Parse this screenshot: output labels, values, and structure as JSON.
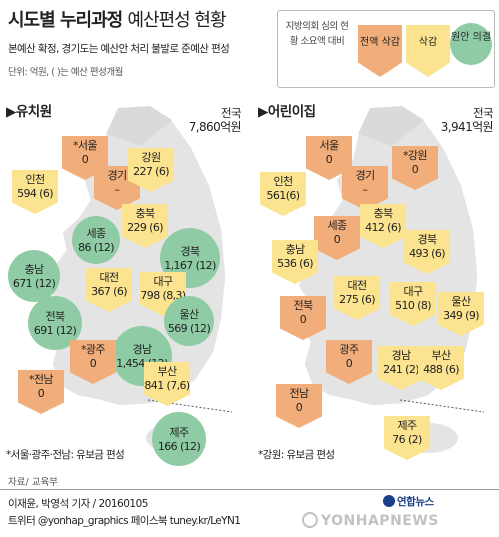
{
  "header": {
    "title_bold": "시도별 누리과정",
    "title_rest": "예산편성 현황",
    "subtitle": "본예산 확정, 경기도는 예산안 처리 불발로 준예산 편성",
    "unit": "단위: 억원, ( )는 예산 편성개월"
  },
  "legend": {
    "label": "지방의회 심의 현황 소요액 대비",
    "full": "전액 삭감",
    "cut": "삭감",
    "orig": "원안 의결"
  },
  "colors": {
    "full": "#f2ae7a",
    "cut": "#fbe38f",
    "orig": "#8fcca6",
    "land": "#e4e4e4"
  },
  "kindergarten": {
    "section_title": "▶유치원",
    "total_label": "전국",
    "total_value": "7,860억원",
    "footnote": "*서울·광주·전남: 유보금 편성",
    "regions": [
      {
        "name": "*서울",
        "value": "0",
        "status": "full"
      },
      {
        "name": "경기",
        "value": "–",
        "status": "full"
      },
      {
        "name": "강원",
        "value": "227 (6)",
        "status": "cut"
      },
      {
        "name": "인천",
        "value": "594 (6)",
        "status": "cut"
      },
      {
        "name": "세종",
        "value": "86 (12)",
        "status": "orig"
      },
      {
        "name": "충북",
        "value": "229 (6)",
        "status": "cut"
      },
      {
        "name": "경북",
        "value": "1,167 (12)",
        "status": "orig"
      },
      {
        "name": "충남",
        "value": "671 (12)",
        "status": "orig"
      },
      {
        "name": "대전",
        "value": "367 (6)",
        "status": "cut"
      },
      {
        "name": "대구",
        "value": "798 (8,3)",
        "status": "cut"
      },
      {
        "name": "전북",
        "value": "691 (12)",
        "status": "orig"
      },
      {
        "name": "울산",
        "value": "569 (12)",
        "status": "orig"
      },
      {
        "name": "경남",
        "value": "1,454 (12)",
        "status": "orig"
      },
      {
        "name": "*광주",
        "value": "0",
        "status": "full"
      },
      {
        "name": "부산",
        "value": "841 (7,6)",
        "status": "cut"
      },
      {
        "name": "*전남",
        "value": "0",
        "status": "full"
      },
      {
        "name": "제주",
        "value": "166 (12)",
        "status": "orig"
      }
    ]
  },
  "daycare": {
    "section_title": "▶어린이집",
    "total_label": "전국",
    "total_value": "3,941억원",
    "footnote": "*강원: 유보금 편성",
    "regions": [
      {
        "name": "서울",
        "value": "0",
        "status": "full"
      },
      {
        "name": "*강원",
        "value": "0",
        "status": "full"
      },
      {
        "name": "경기",
        "value": "–",
        "status": "full"
      },
      {
        "name": "인천",
        "value": "561(6)",
        "status": "cut"
      },
      {
        "name": "충북",
        "value": "412 (6)",
        "status": "cut"
      },
      {
        "name": "세종",
        "value": "0",
        "status": "full"
      },
      {
        "name": "경북",
        "value": "493 (6)",
        "status": "cut"
      },
      {
        "name": "충남",
        "value": "536 (6)",
        "status": "cut"
      },
      {
        "name": "대전",
        "value": "275 (6)",
        "status": "cut"
      },
      {
        "name": "대구",
        "value": "510 (8)",
        "status": "cut"
      },
      {
        "name": "울산",
        "value": "349 (9)",
        "status": "cut"
      },
      {
        "name": "전북",
        "value": "0",
        "status": "full"
      },
      {
        "name": "광주",
        "value": "0",
        "status": "full"
      },
      {
        "name": "경남",
        "value": "241 (2)",
        "status": "cut"
      },
      {
        "name": "부산",
        "value": "488 (6)",
        "status": "cut"
      },
      {
        "name": "전남",
        "value": "0",
        "status": "full"
      },
      {
        "name": "제주",
        "value": "76 (2)",
        "status": "cut"
      }
    ]
  },
  "footer": {
    "source": "자료/ 교육부",
    "credit": "이재윤, 박영석 기자 / 20160105",
    "social": "트위터 @yonhap_graphics  페이스북 tuney.kr/LeYN1",
    "logo": "연합뉴스",
    "watermark": "YONHAPNEWS"
  }
}
